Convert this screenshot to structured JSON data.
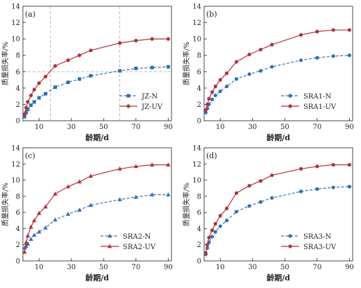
{
  "colors": {
    "n_series": "#2f6fb0",
    "uv_series": "#b0303a",
    "reference_line": "#a8a8a8",
    "axis": "#333333"
  },
  "chart_data": [
    {
      "type": "line",
      "panel_label": "(a)",
      "xlabel": "龄期/d",
      "ylabel": "质量损失率/%",
      "xlim": [
        0,
        92
      ],
      "ylim": [
        0,
        14
      ],
      "xticks": [
        10,
        30,
        50,
        70,
        90
      ],
      "yticks": [
        0,
        2,
        4,
        6,
        8,
        10,
        12,
        14
      ],
      "legend_position": "bottom-right",
      "grid": false,
      "reference_lines": {
        "vertical": [
          17,
          60
        ],
        "horizontal": [
          6.0
        ]
      },
      "series": [
        {
          "name": "JZ-N",
          "marker": "square",
          "line": "dashed",
          "color_key": "n_series",
          "x": [
            1,
            2,
            3,
            5,
            7,
            10,
            14,
            20,
            28,
            35,
            42,
            60,
            70,
            80,
            90
          ],
          "y": [
            0.5,
            1.0,
            1.4,
            1.9,
            2.3,
            2.8,
            3.3,
            4.1,
            4.7,
            5.1,
            5.5,
            6.1,
            6.4,
            6.5,
            6.6
          ]
        },
        {
          "name": "JZ-UV",
          "marker": "circle",
          "line": "solid",
          "color_key": "uv_series",
          "x": [
            1,
            2,
            3,
            5,
            7,
            10,
            14,
            20,
            28,
            35,
            42,
            60,
            70,
            80,
            90
          ],
          "y": [
            0.8,
            1.6,
            2.3,
            3.1,
            3.8,
            4.6,
            5.4,
            6.7,
            7.4,
            8.0,
            8.6,
            9.5,
            9.8,
            10.0,
            10.0
          ]
        }
      ]
    },
    {
      "type": "line",
      "panel_label": "(b)",
      "xlabel": "龄期/d",
      "ylabel": "质量损失率/%",
      "xlim": [
        0,
        92
      ],
      "ylim": [
        0,
        14
      ],
      "xticks": [
        10,
        30,
        50,
        70,
        90
      ],
      "yticks": [
        0,
        2,
        4,
        6,
        8,
        10,
        12,
        14
      ],
      "legend_position": "bottom-right",
      "grid": false,
      "series": [
        {
          "name": "SRA1-N",
          "marker": "circle",
          "line": "dashed",
          "color_key": "n_series",
          "x": [
            1,
            2,
            3,
            5,
            7,
            10,
            14,
            20,
            28,
            35,
            42,
            60,
            70,
            80,
            90
          ],
          "y": [
            1.0,
            1.5,
            2.0,
            2.6,
            3.1,
            3.6,
            4.2,
            5.1,
            5.7,
            6.1,
            6.6,
            7.4,
            7.7,
            7.9,
            8.0
          ]
        },
        {
          "name": "SRA1-UV",
          "marker": "circle",
          "line": "solid",
          "color_key": "uv_series",
          "x": [
            1,
            2,
            3,
            5,
            7,
            10,
            14,
            20,
            28,
            35,
            42,
            60,
            70,
            80,
            90
          ],
          "y": [
            1.3,
            2.0,
            2.7,
            3.5,
            4.2,
            5.0,
            5.8,
            7.2,
            8.1,
            8.7,
            9.3,
            10.5,
            10.9,
            11.1,
            11.1
          ]
        }
      ]
    },
    {
      "type": "line",
      "panel_label": "(c)",
      "xlabel": "龄期/d",
      "ylabel": "质量损失率/%",
      "xlim": [
        0,
        92
      ],
      "ylim": [
        0,
        14
      ],
      "xticks": [
        10,
        30,
        50,
        70,
        90
      ],
      "yticks": [
        0,
        2,
        4,
        6,
        8,
        10,
        12,
        14
      ],
      "legend_position": "bottom-right",
      "grid": false,
      "series": [
        {
          "name": "SRA2-N",
          "marker": "triangle",
          "line": "dashed",
          "color_key": "n_series",
          "x": [
            1,
            2,
            3,
            5,
            7,
            10,
            14,
            20,
            28,
            35,
            42,
            60,
            70,
            80,
            90
          ],
          "y": [
            1.6,
            1.8,
            2.1,
            2.7,
            3.2,
            3.6,
            4.1,
            5.1,
            5.8,
            6.3,
            6.9,
            7.6,
            7.9,
            8.2,
            8.2
          ]
        },
        {
          "name": "SRA2-UV",
          "marker": "triangle",
          "line": "solid",
          "color_key": "uv_series",
          "x": [
            1,
            2,
            3,
            5,
            7,
            10,
            14,
            20,
            28,
            35,
            42,
            60,
            70,
            80,
            90
          ],
          "y": [
            1.1,
            2.3,
            3.1,
            4.2,
            5.0,
            5.9,
            6.7,
            8.3,
            9.2,
            9.8,
            10.5,
            11.4,
            11.7,
            11.9,
            11.9
          ]
        }
      ]
    },
    {
      "type": "line",
      "panel_label": "(d)",
      "xlabel": "龄期/d",
      "ylabel": "质量损失率/%",
      "xlim": [
        0,
        92
      ],
      "ylim": [
        0,
        14
      ],
      "xticks": [
        10,
        30,
        50,
        70,
        90
      ],
      "yticks": [
        0,
        2,
        4,
        6,
        8,
        10,
        12,
        14
      ],
      "legend_position": "bottom-right",
      "grid": false,
      "series": [
        {
          "name": "SRA3-N",
          "marker": "circle",
          "line": "dashed",
          "color_key": "n_series",
          "x": [
            1,
            2,
            3,
            5,
            7,
            10,
            14,
            20,
            28,
            35,
            42,
            60,
            70,
            80,
            90
          ],
          "y": [
            0.8,
            1.6,
            2.3,
            3.0,
            3.6,
            4.3,
            5.0,
            6.1,
            6.8,
            7.3,
            7.8,
            8.6,
            8.9,
            9.1,
            9.2
          ]
        },
        {
          "name": "SRA3-UV",
          "marker": "circle",
          "line": "solid",
          "color_key": "uv_series",
          "x": [
            1,
            2,
            3,
            5,
            7,
            10,
            14,
            20,
            28,
            35,
            42,
            60,
            70,
            80,
            90
          ],
          "y": [
            1.0,
            2.0,
            2.9,
            3.8,
            4.6,
            5.6,
            6.5,
            8.4,
            9.3,
            9.9,
            10.6,
            11.4,
            11.7,
            11.9,
            11.9
          ]
        }
      ]
    }
  ]
}
